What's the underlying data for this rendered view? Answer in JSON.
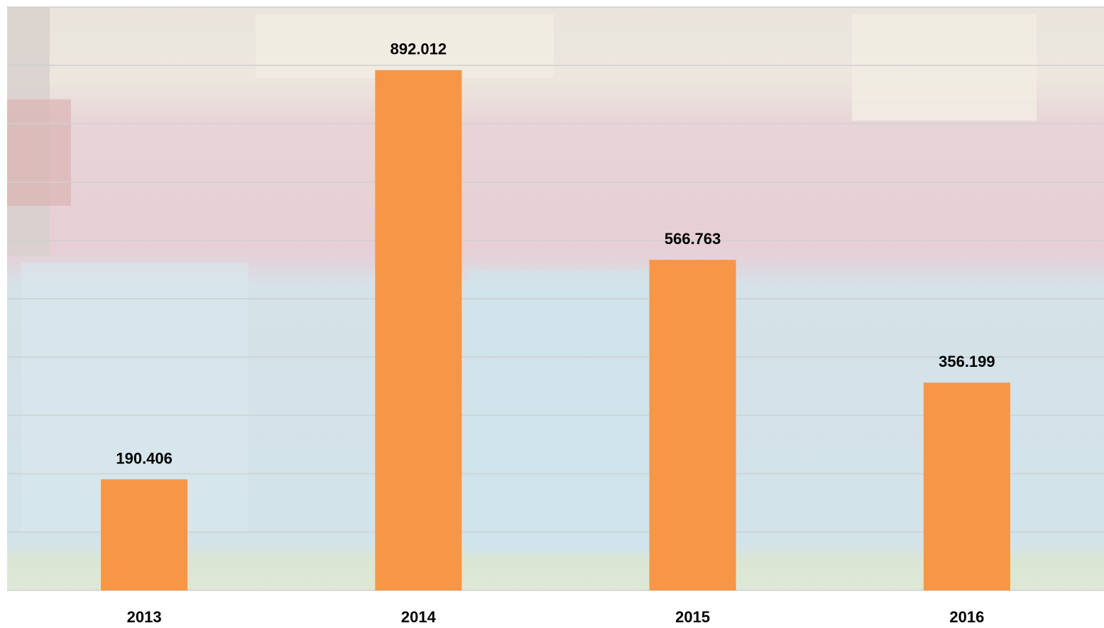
{
  "chart_data": {
    "type": "bar",
    "categories": [
      "2013",
      "2014",
      "2015",
      "2016"
    ],
    "values": [
      190.406,
      892.012,
      566.763,
      356.199
    ],
    "color": "#f79646",
    "ylim": [
      0,
      1000
    ],
    "yticks": [
      0,
      100,
      200,
      300,
      400,
      500,
      600,
      700,
      800,
      900,
      1000
    ],
    "grid": true
  }
}
